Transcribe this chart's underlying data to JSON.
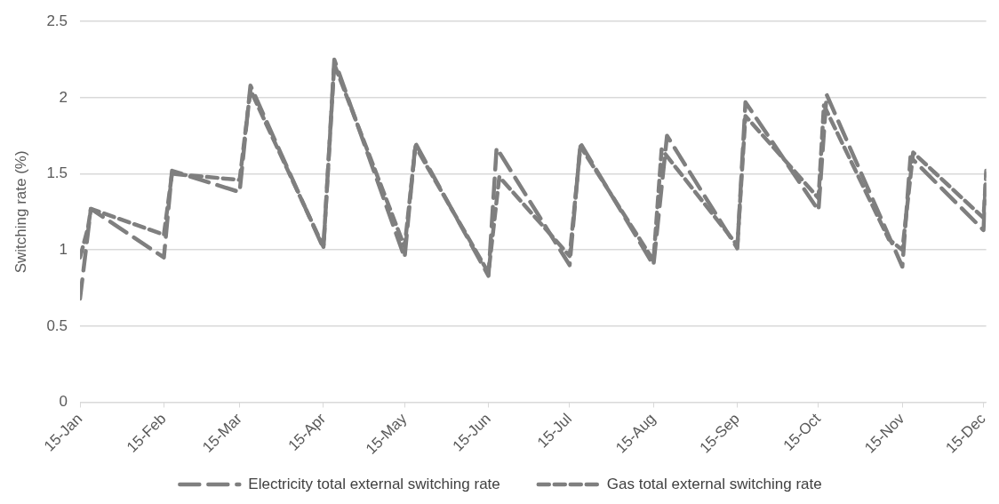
{
  "chart_data": {
    "type": "line",
    "ylabel": "Switching rate (%)",
    "ylim": [
      0,
      2.5
    ],
    "yticks": [
      0,
      0.5,
      1,
      1.5,
      2,
      2.5
    ],
    "xlim": [
      "2015-01-01",
      "2015-12-02"
    ],
    "xticks": [
      {
        "value": "2015-01-01",
        "label": "15-Jan"
      },
      {
        "value": "2015-02-01",
        "label": "15-Feb"
      },
      {
        "value": "2015-03-01",
        "label": "15-Mar"
      },
      {
        "value": "2015-04-01",
        "label": "15-Apr"
      },
      {
        "value": "2015-05-01",
        "label": "15-May"
      },
      {
        "value": "2015-06-01",
        "label": "15-Jun"
      },
      {
        "value": "2015-07-01",
        "label": "15-Jul"
      },
      {
        "value": "2015-08-01",
        "label": "15-Aug"
      },
      {
        "value": "2015-09-01",
        "label": "15-Sep"
      },
      {
        "value": "2015-10-01",
        "label": "15-Oct"
      },
      {
        "value": "2015-11-01",
        "label": "15-Nov"
      },
      {
        "value": "2015-12-01",
        "label": "15-Dec"
      }
    ],
    "grid": "y",
    "legend": "bottom",
    "line_style": "dashed",
    "marker": "none",
    "series": [
      {
        "name": "Electricity total external switching rate",
        "color": "#7f7f7f",
        "x": [
          "2015-01-01",
          "2015-01-05",
          "2015-02-01",
          "2015-02-04",
          "2015-03-01",
          "2015-03-05",
          "2015-04-01",
          "2015-04-05",
          "2015-05-01",
          "2015-05-05",
          "2015-06-01",
          "2015-06-04",
          "2015-07-01",
          "2015-07-05",
          "2015-08-01",
          "2015-08-06",
          "2015-09-01",
          "2015-09-04",
          "2015-10-01",
          "2015-10-04",
          "2015-11-01",
          "2015-11-04",
          "2015-12-01",
          "2015-12-02"
        ],
        "values": [
          0.68,
          1.27,
          0.95,
          1.52,
          1.38,
          2.08,
          1.01,
          2.25,
          0.95,
          1.7,
          0.83,
          1.67,
          0.9,
          1.7,
          0.9,
          1.75,
          1.01,
          1.97,
          1.26,
          2.02,
          0.89,
          1.61,
          1.13,
          1.52
        ]
      },
      {
        "name": "Gas total external switching rate",
        "color": "#7f7f7f",
        "x": [
          "2015-01-01",
          "2015-01-04",
          "2015-01-05",
          "2015-02-01",
          "2015-02-04",
          "2015-03-01",
          "2015-03-05",
          "2015-04-01",
          "2015-04-05",
          "2015-05-01",
          "2015-05-05",
          "2015-06-01",
          "2015-06-05",
          "2015-07-01",
          "2015-07-05",
          "2015-08-01",
          "2015-08-04",
          "2015-09-01",
          "2015-09-04",
          "2015-10-01",
          "2015-10-03",
          "2015-10-27",
          "2015-11-01",
          "2015-11-05",
          "2015-12-01",
          "2015-12-02"
        ],
        "values": [
          0.95,
          1.15,
          1.27,
          1.1,
          1.5,
          1.46,
          2.05,
          1.02,
          2.22,
          1.02,
          1.68,
          0.85,
          1.48,
          0.96,
          1.68,
          0.93,
          1.66,
          1.03,
          1.88,
          1.34,
          1.95,
          1.07,
          1.0,
          1.64,
          1.21,
          1.5
        ]
      }
    ]
  }
}
